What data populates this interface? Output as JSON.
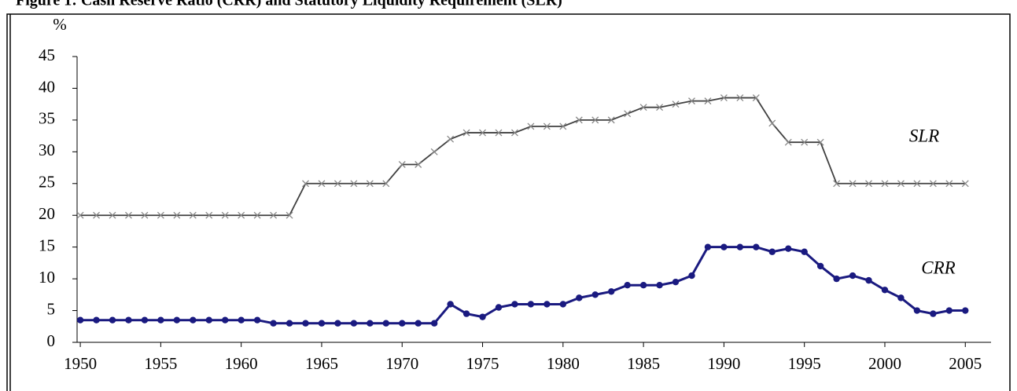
{
  "chart_data": {
    "type": "line",
    "title": "Figure 1: Cash Reserve Ratio (CRR) and Statutory Liquidity Requirement (SLR)",
    "y_label": "%",
    "x": [
      1950,
      1951,
      1952,
      1953,
      1954,
      1955,
      1956,
      1957,
      1958,
      1959,
      1960,
      1961,
      1962,
      1963,
      1964,
      1965,
      1966,
      1967,
      1968,
      1969,
      1970,
      1971,
      1972,
      1973,
      1974,
      1975,
      1976,
      1977,
      1978,
      1979,
      1980,
      1981,
      1982,
      1983,
      1984,
      1985,
      1986,
      1987,
      1988,
      1989,
      1990,
      1991,
      1992,
      1993,
      1994,
      1995,
      1996,
      1997,
      1998,
      1999,
      2000,
      2001,
      2002,
      2003,
      2004,
      2005
    ],
    "series": [
      {
        "name": "SLR",
        "color": "#404040",
        "marker": "x",
        "values": [
          20,
          20,
          20,
          20,
          20,
          20,
          20,
          20,
          20,
          20,
          20,
          20,
          20,
          20,
          25,
          25,
          25,
          25,
          25,
          25,
          28,
          28,
          30,
          32,
          33,
          33,
          33,
          33,
          34,
          34,
          34,
          35,
          35,
          35,
          36,
          37,
          37,
          37.5,
          38,
          38,
          38.5,
          38.5,
          38.5,
          34.5,
          31.5,
          31.5,
          31.5,
          25,
          25,
          25,
          25,
          25,
          25,
          25,
          25,
          25
        ]
      },
      {
        "name": "CRR",
        "color": "#1a1a80",
        "marker": "circle",
        "values": [
          3.5,
          3.5,
          3.5,
          3.5,
          3.5,
          3.5,
          3.5,
          3.5,
          3.5,
          3.5,
          3.5,
          3.5,
          3,
          3,
          3,
          3,
          3,
          3,
          3,
          3,
          3,
          3,
          3,
          6,
          4.5,
          4,
          5.5,
          6,
          6,
          6,
          6,
          7,
          7.5,
          8,
          9,
          9,
          9,
          9.5,
          10.5,
          15,
          15,
          15,
          15,
          14.25,
          14.75,
          14.25,
          12,
          10,
          10.5,
          9.75,
          8.25,
          7,
          5,
          4.5,
          5,
          5
        ]
      }
    ],
    "xlim": [
      1949.8,
      2006.6
    ],
    "xticks": [
      1950,
      1955,
      1960,
      1965,
      1970,
      1975,
      1980,
      1985,
      1990,
      1995,
      2000,
      2005
    ],
    "ylim": [
      0,
      45
    ],
    "yticks": [
      0,
      5,
      10,
      15,
      20,
      25,
      30,
      35,
      40,
      45
    ],
    "grid": false
  }
}
